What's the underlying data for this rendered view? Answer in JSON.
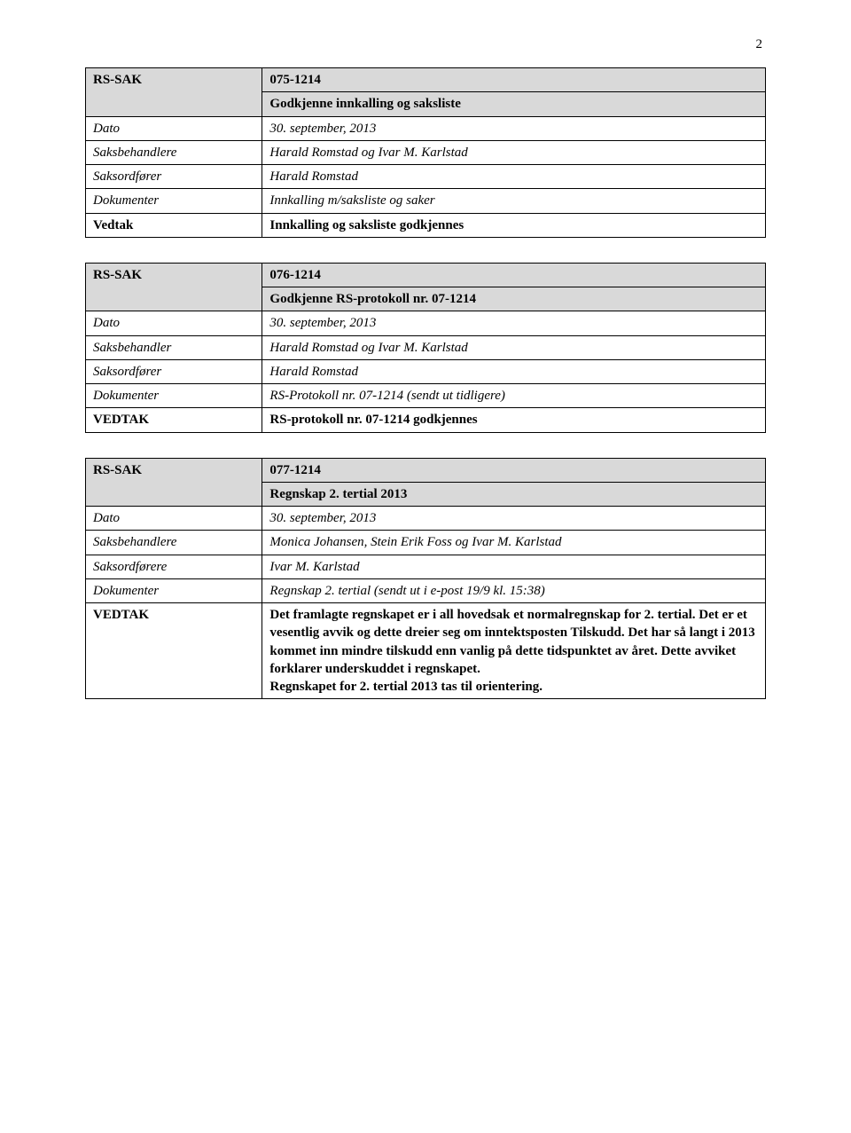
{
  "page_number": "2",
  "colors": {
    "header_bg": "#d9d9d9",
    "border": "#000000",
    "text": "#000000",
    "background": "#ffffff"
  },
  "typography": {
    "font_family": "Palatino Linotype, Book Antiqua, Palatino, serif",
    "base_fontsize_pt": 12,
    "line_height": 1.35
  },
  "layout": {
    "left_col_width_pct": 26,
    "right_col_width_pct": 74
  },
  "tables": [
    {
      "header": {
        "left": "RS-SAK",
        "code": "075-1214",
        "title": "Godkjenne innkalling og saksliste"
      },
      "rows": [
        {
          "label": "Dato",
          "label_style": "italic",
          "value": "30. september, 2013",
          "value_style": "italic"
        },
        {
          "label": "Saksbehandlere",
          "label_style": "italic",
          "value": "Harald Romstad og Ivar M. Karlstad",
          "value_style": "italic"
        },
        {
          "label": "Saksordfører",
          "label_style": "italic",
          "value": "Harald Romstad",
          "value_style": "italic"
        },
        {
          "label": "Dokumenter",
          "label_style": "italic",
          "value": "Innkalling m/saksliste og saker",
          "value_style": "italic"
        },
        {
          "label": "Vedtak",
          "label_style": "bold",
          "value": "Innkalling og saksliste godkjennes",
          "value_style": "bold"
        }
      ]
    },
    {
      "header": {
        "left": "RS-SAK",
        "code": "076-1214",
        "title": "Godkjenne RS-protokoll nr. 07-1214"
      },
      "rows": [
        {
          "label": "Dato",
          "label_style": "italic",
          "value": "30. september, 2013",
          "value_style": "italic"
        },
        {
          "label": "Saksbehandler",
          "label_style": "italic",
          "value": "Harald Romstad og Ivar M. Karlstad",
          "value_style": "italic"
        },
        {
          "label": "Saksordfører",
          "label_style": "italic",
          "value": "Harald Romstad",
          "value_style": "italic"
        },
        {
          "label": "Dokumenter",
          "label_style": "italic",
          "value": "RS-Protokoll nr. 07-1214 (sendt ut tidligere)",
          "value_style": "italic"
        },
        {
          "label": "VEDTAK",
          "label_style": "bold",
          "value": "RS-protokoll nr. 07-1214 godkjennes",
          "value_style": "bold"
        }
      ]
    },
    {
      "header": {
        "left": "RS-SAK",
        "code": "077-1214",
        "title": "Regnskap 2. tertial 2013"
      },
      "rows": [
        {
          "label": "Dato",
          "label_style": "italic",
          "value": "30. september, 2013",
          "value_style": "italic"
        },
        {
          "label": "Saksbehandlere",
          "label_style": "italic",
          "value": "Monica Johansen, Stein Erik Foss og Ivar M. Karlstad",
          "value_style": "italic"
        },
        {
          "label": "Saksordførere",
          "label_style": "italic",
          "value": "Ivar M. Karlstad",
          "value_style": "italic"
        },
        {
          "label": "Dokumenter",
          "label_style": "italic",
          "value": "Regnskap 2. tertial (sendt ut i e-post 19/9 kl. 15:38)",
          "value_style": "italic"
        },
        {
          "label": "VEDTAK",
          "label_style": "bold",
          "value": "Det framlagte regnskapet er i all hovedsak et normalregnskap for 2. tertial. Det er et vesentlig avvik og dette dreier seg om inntektsposten Tilskudd. Det har så langt i 2013 kommet inn mindre tilskudd enn vanlig på dette tidspunktet av året. Dette avviket forklarer underskuddet i regnskapet.\nRegnskapet for 2. tertial 2013 tas til orientering.",
          "value_style": "bold"
        }
      ]
    }
  ]
}
